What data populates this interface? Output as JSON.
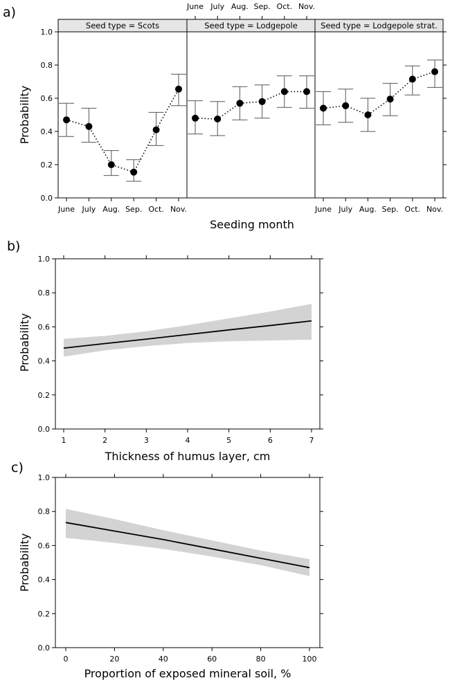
{
  "chart_data": [
    {
      "type": "scatter",
      "panel_label": "a)",
      "xlabel": "Seeding month",
      "ylabel": "Probability",
      "ylim": [
        0,
        1
      ],
      "yticks": [
        "0.0",
        "0.2",
        "0.4",
        "0.6",
        "0.8",
        "1.0"
      ],
      "categories": [
        "June",
        "July",
        "Aug.",
        "Sep.",
        "Oct.",
        "Nov."
      ],
      "series": [
        {
          "name": "Seed type = Scots",
          "values": [
            0.47,
            0.43,
            0.2,
            0.155,
            0.41,
            0.655
          ],
          "lower": [
            0.37,
            0.335,
            0.135,
            0.1,
            0.315,
            0.555
          ],
          "upper": [
            0.57,
            0.54,
            0.285,
            0.23,
            0.515,
            0.745
          ]
        },
        {
          "name": "Seed type = Lodgepole",
          "values": [
            0.48,
            0.475,
            0.57,
            0.58,
            0.64,
            0.64
          ],
          "lower": [
            0.385,
            0.375,
            0.47,
            0.48,
            0.545,
            0.54
          ],
          "upper": [
            0.585,
            0.58,
            0.67,
            0.68,
            0.735,
            0.735
          ]
        },
        {
          "name": "Seed type = Lodgepole strat.",
          "values": [
            0.54,
            0.555,
            0.5,
            0.595,
            0.715,
            0.76
          ],
          "lower": [
            0.44,
            0.455,
            0.4,
            0.495,
            0.62,
            0.665
          ],
          "upper": [
            0.64,
            0.655,
            0.6,
            0.69,
            0.795,
            0.83
          ]
        }
      ]
    },
    {
      "type": "line",
      "panel_label": "b)",
      "xlabel": "Thickness of humus layer, cm",
      "ylabel": "Probability",
      "xlim": [
        1,
        7
      ],
      "ylim": [
        0,
        1
      ],
      "xticks": [
        "1",
        "2",
        "3",
        "4",
        "5",
        "6",
        "7"
      ],
      "yticks": [
        "0.0",
        "0.2",
        "0.4",
        "0.6",
        "0.8",
        "1.0"
      ],
      "x": [
        1,
        2,
        3,
        4,
        5,
        6,
        7
      ],
      "fit": [
        0.475,
        0.502,
        0.528,
        0.555,
        0.582,
        0.608,
        0.635
      ],
      "lower": [
        0.425,
        0.462,
        0.487,
        0.505,
        0.515,
        0.52,
        0.525
      ],
      "upper": [
        0.53,
        0.547,
        0.574,
        0.61,
        0.65,
        0.69,
        0.735
      ]
    },
    {
      "type": "line",
      "panel_label": "c)",
      "xlabel": "Proportion of exposed mineral soil, %",
      "ylabel": "Probability",
      "xlim": [
        0,
        100
      ],
      "ylim": [
        0,
        1
      ],
      "xticks": [
        "0",
        "20",
        "40",
        "60",
        "80",
        "100"
      ],
      "yticks": [
        "0.0",
        "0.2",
        "0.4",
        "0.6",
        "0.8",
        "1.0"
      ],
      "x": [
        0,
        20,
        40,
        60,
        80,
        100
      ],
      "fit": [
        0.735,
        0.685,
        0.635,
        0.58,
        0.525,
        0.47
      ],
      "lower": [
        0.645,
        0.615,
        0.58,
        0.535,
        0.485,
        0.42
      ],
      "upper": [
        0.815,
        0.755,
        0.69,
        0.63,
        0.57,
        0.52
      ]
    }
  ]
}
